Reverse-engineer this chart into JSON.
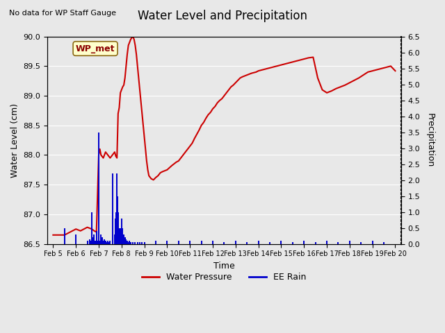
{
  "title": "Water Level and Precipitation",
  "subtitle": "No data for WP Staff Gauge",
  "xlabel": "Time",
  "ylabel_left": "Water Level (cm)",
  "ylabel_right": "Precipitation",
  "ylim_left": [
    86.5,
    90.0
  ],
  "ylim_right": [
    0.0,
    6.5
  ],
  "yticks_left": [
    86.5,
    87.0,
    87.5,
    88.0,
    88.5,
    89.0,
    89.5,
    90.0
  ],
  "yticks_right": [
    0.0,
    0.5,
    1.0,
    1.5,
    2.0,
    2.5,
    3.0,
    3.5,
    4.0,
    4.5,
    5.0,
    5.5,
    6.0,
    6.5
  ],
  "legend_entries": [
    "Water Pressure",
    "EE Rain"
  ],
  "legend_colors": [
    "#cc0000",
    "#0000cc"
  ],
  "wp_label": "WP_met",
  "bg_color": "#e8e8e8",
  "plot_bg_color": "#f0f0f0",
  "water_level_color": "#cc0000",
  "rain_color": "#0000cc",
  "water_level_data": {
    "times_days_from_feb5": [
      0.0,
      0.5,
      1.0,
      1.2,
      1.5,
      1.7,
      1.8,
      1.9,
      2.0,
      2.05,
      2.1,
      2.2,
      2.3,
      2.4,
      2.5,
      2.6,
      2.7,
      2.75,
      2.8,
      2.85,
      2.9,
      2.95,
      3.0,
      3.05,
      3.1,
      3.15,
      3.2,
      3.25,
      3.3,
      3.35,
      3.4,
      3.45,
      3.5,
      3.55,
      3.6,
      3.65,
      3.7,
      3.75,
      3.8,
      3.85,
      3.9,
      3.95,
      4.0,
      4.05,
      4.1,
      4.15,
      4.2,
      4.3,
      4.4,
      4.5,
      4.6,
      4.7,
      4.8,
      5.0,
      5.2,
      5.4,
      5.5,
      5.6,
      5.7,
      5.8,
      5.9,
      6.0,
      6.1,
      6.2,
      6.3,
      6.4,
      6.5,
      6.6,
      6.7,
      6.8,
      6.9,
      7.0,
      7.1,
      7.2,
      7.3,
      7.4,
      7.5,
      7.6,
      7.7,
      7.8,
      7.9,
      8.0,
      8.1,
      8.2,
      8.3,
      8.5,
      8.7,
      8.9,
      9.0,
      9.2,
      9.4,
      9.6,
      9.8,
      10.0,
      10.2,
      10.4,
      10.6,
      10.8,
      11.0,
      11.2,
      11.4,
      11.6,
      11.8,
      12.0,
      12.2,
      12.4,
      12.6,
      12.8,
      13.0,
      13.2,
      13.4,
      13.6,
      13.8,
      14.0,
      14.2,
      14.4,
      14.6,
      14.8,
      15.0
    ],
    "values": [
      86.65,
      86.65,
      86.75,
      86.72,
      86.78,
      86.75,
      86.72,
      86.7,
      88.0,
      88.1,
      88.0,
      87.95,
      88.05,
      88.0,
      87.95,
      88.0,
      88.05,
      87.98,
      87.95,
      88.7,
      88.8,
      89.05,
      89.1,
      89.15,
      89.18,
      89.3,
      89.5,
      89.7,
      89.85,
      89.9,
      89.95,
      89.98,
      90.0,
      89.95,
      89.85,
      89.7,
      89.5,
      89.3,
      89.1,
      88.9,
      88.7,
      88.5,
      88.3,
      88.1,
      87.9,
      87.75,
      87.65,
      87.6,
      87.58,
      87.62,
      87.65,
      87.7,
      87.72,
      87.75,
      87.82,
      87.88,
      87.9,
      87.95,
      88.0,
      88.05,
      88.1,
      88.15,
      88.2,
      88.28,
      88.35,
      88.42,
      88.5,
      88.55,
      88.62,
      88.68,
      88.72,
      88.78,
      88.82,
      88.88,
      88.92,
      88.95,
      89.0,
      89.05,
      89.1,
      89.15,
      89.18,
      89.22,
      89.26,
      89.3,
      89.32,
      89.35,
      89.38,
      89.4,
      89.42,
      89.44,
      89.46,
      89.48,
      89.5,
      89.52,
      89.54,
      89.56,
      89.58,
      89.6,
      89.62,
      89.64,
      89.65,
      89.3,
      89.1,
      89.05,
      89.08,
      89.12,
      89.15,
      89.18,
      89.22,
      89.26,
      89.3,
      89.35,
      89.4,
      89.42,
      89.44,
      89.46,
      89.48,
      89.5,
      89.42
    ]
  },
  "rain_data": {
    "times_days_from_feb5": [
      0.5,
      1.0,
      1.5,
      1.6,
      1.65,
      1.7,
      1.75,
      1.8,
      1.85,
      1.9,
      1.95,
      2.0,
      2.05,
      2.1,
      2.15,
      2.2,
      2.25,
      2.3,
      2.35,
      2.4,
      2.45,
      2.5,
      2.6,
      2.7,
      2.72,
      2.74,
      2.76,
      2.78,
      2.8,
      2.82,
      2.84,
      2.86,
      2.88,
      2.9,
      2.95,
      3.0,
      3.05,
      3.1,
      3.15,
      3.2,
      3.25,
      3.3,
      3.35,
      3.4,
      3.5,
      3.6,
      3.7,
      3.8,
      3.9,
      4.0,
      4.5,
      5.0,
      5.5,
      6.0,
      6.5,
      7.0,
      7.5,
      8.0,
      8.5,
      9.0,
      9.5,
      10.0,
      10.5,
      11.0,
      11.5,
      12.0,
      12.5,
      13.0,
      13.5,
      14.0,
      14.5
    ],
    "values": [
      0.5,
      0.3,
      0.1,
      0.15,
      0.1,
      1.0,
      0.2,
      0.3,
      0.1,
      0.4,
      0.1,
      3.5,
      0.1,
      0.3,
      0.2,
      0.1,
      0.15,
      0.1,
      0.05,
      0.1,
      0.05,
      0.1,
      2.2,
      0.3,
      0.5,
      0.8,
      1.0,
      1.2,
      2.2,
      1.5,
      1.0,
      0.8,
      0.5,
      0.3,
      0.5,
      0.8,
      0.5,
      0.3,
      0.2,
      0.15,
      0.1,
      0.05,
      0.1,
      0.05,
      0.05,
      0.05,
      0.05,
      0.05,
      0.05,
      0.05,
      0.1,
      0.1,
      0.1,
      0.1,
      0.1,
      0.1,
      0.05,
      0.1,
      0.05,
      0.1,
      0.05,
      0.1,
      0.05,
      0.1,
      0.05,
      0.1,
      0.05,
      0.1,
      0.05,
      0.1,
      0.05
    ]
  }
}
